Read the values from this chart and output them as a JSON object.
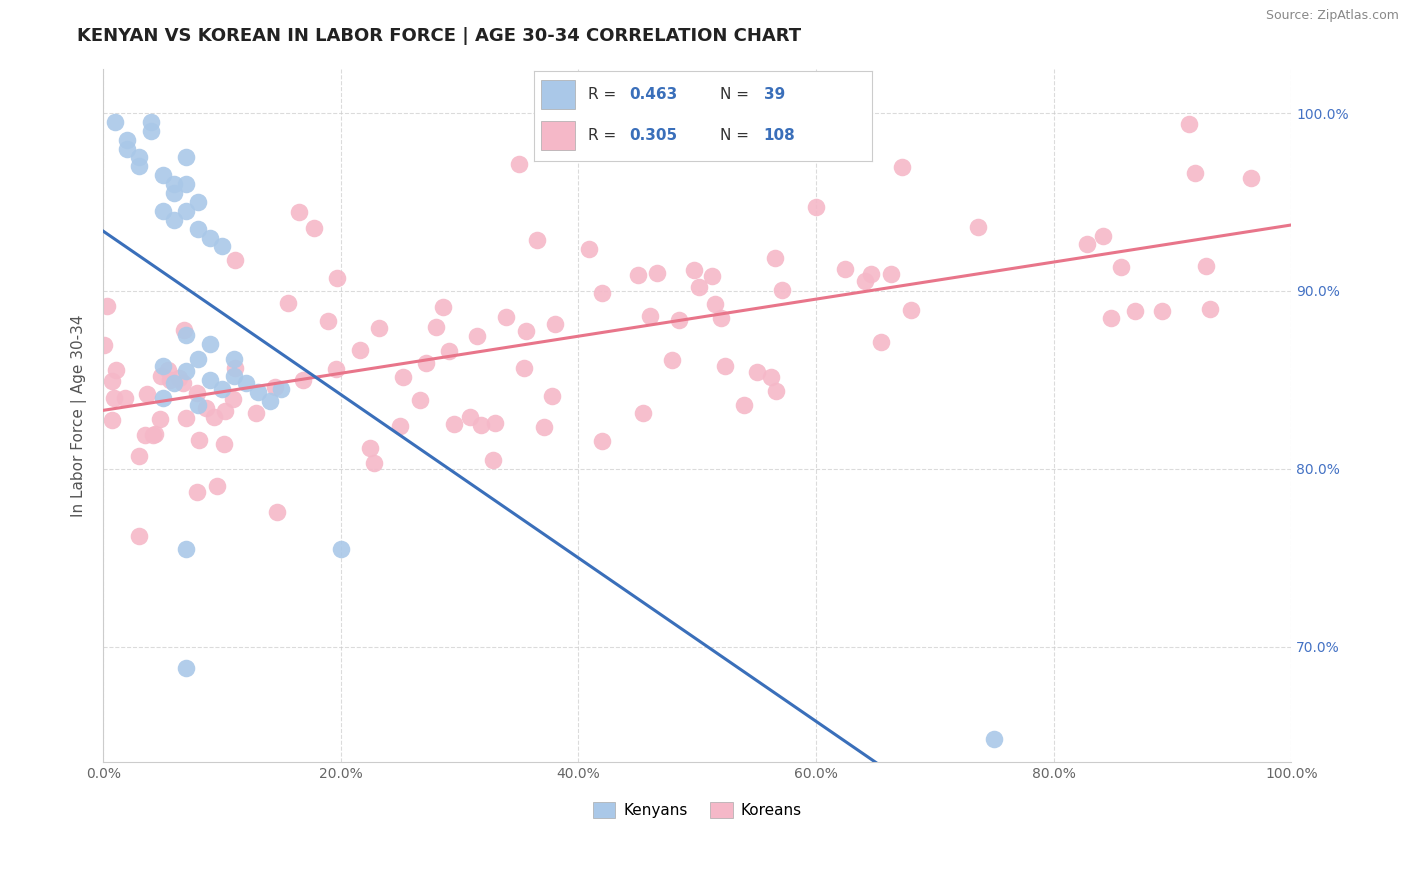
{
  "title": "KENYAN VS KOREAN IN LABOR FORCE | AGE 30-34 CORRELATION CHART",
  "source_text": "Source: ZipAtlas.com",
  "ylabel": "In Labor Force | Age 30-34",
  "x_min": 0.0,
  "x_max": 1.0,
  "y_min": 0.635,
  "y_max": 1.025,
  "x_tick_labels": [
    "0.0%",
    "20.0%",
    "40.0%",
    "60.0%",
    "80.0%",
    "100.0%"
  ],
  "x_tick_vals": [
    0.0,
    0.2,
    0.4,
    0.6,
    0.8,
    1.0
  ],
  "y_tick_labels": [
    "70.0%",
    "80.0%",
    "90.0%",
    "100.0%"
  ],
  "y_tick_vals": [
    0.7,
    0.8,
    0.9,
    1.0
  ],
  "legend_labels": [
    "Kenyans",
    "Koreans"
  ],
  "kenyan_color": "#aac8e8",
  "korean_color": "#f5b8c8",
  "kenyan_line_color": "#3a6fba",
  "korean_line_color": "#e8758a",
  "right_tick_color": "#4472c4",
  "R_kenyan": 0.463,
  "N_kenyan": 39,
  "R_korean": 0.305,
  "N_korean": 108,
  "background_color": "#ffffff",
  "grid_color": "#cccccc",
  "title_fontsize": 13,
  "axis_label_fontsize": 11,
  "tick_fontsize": 10
}
